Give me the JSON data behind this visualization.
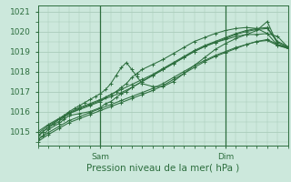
{
  "background_color": "#cce8dc",
  "grid_color": "#aaccbb",
  "line_color": "#2d6e3e",
  "xlim": [
    0,
    48
  ],
  "ylim": [
    1014.3,
    1021.3
  ],
  "yticks": [
    1015,
    1016,
    1017,
    1018,
    1019,
    1020,
    1021
  ],
  "xtick_positions": [
    12,
    36
  ],
  "xtick_labels": [
    "Sam",
    "Dim"
  ],
  "xlabel": "Pression niveau de la mer( hPa )",
  "xlabel_fontsize": 7.5,
  "tick_fontsize": 6.5,
  "series": [
    {
      "x": [
        0,
        1,
        2,
        4,
        5,
        6,
        8,
        10,
        12,
        13,
        14,
        15,
        16,
        17,
        18,
        20,
        22,
        24,
        26,
        28,
        30,
        32,
        34,
        36,
        38,
        40,
        42,
        44,
        46,
        48
      ],
      "y": [
        1014.6,
        1014.8,
        1015.1,
        1015.4,
        1015.6,
        1015.8,
        1015.9,
        1016.0,
        1016.2,
        1016.4,
        1016.5,
        1016.7,
        1016.9,
        1017.0,
        1017.2,
        1017.5,
        1017.8,
        1018.1,
        1018.4,
        1018.7,
        1019.0,
        1019.25,
        1019.45,
        1019.6,
        1019.75,
        1019.85,
        1019.85,
        1019.9,
        1019.75,
        1019.2
      ]
    },
    {
      "x": [
        0,
        1,
        2,
        4,
        5,
        6,
        8,
        10,
        12,
        13,
        14,
        15,
        16,
        17,
        18,
        19,
        20,
        22,
        24,
        26,
        28,
        30,
        32,
        34,
        36,
        38,
        40,
        42,
        44,
        46,
        48
      ],
      "y": [
        1014.7,
        1015.0,
        1015.2,
        1015.5,
        1015.7,
        1015.9,
        1016.1,
        1016.3,
        1016.5,
        1016.7,
        1016.85,
        1017.0,
        1017.2,
        1017.4,
        1017.7,
        1017.9,
        1018.1,
        1018.35,
        1018.6,
        1018.9,
        1019.2,
        1019.5,
        1019.7,
        1019.9,
        1020.05,
        1020.15,
        1020.2,
        1020.15,
        1019.9,
        1019.3,
        1019.2
      ]
    },
    {
      "x": [
        0,
        1,
        2,
        3,
        4,
        5,
        6,
        7,
        8,
        9,
        10,
        11,
        12,
        13,
        14,
        15,
        16,
        17,
        18,
        19,
        20,
        22,
        24,
        26,
        28,
        30,
        32,
        34,
        36,
        38,
        40,
        42,
        44,
        46,
        48
      ],
      "y": [
        1014.8,
        1015.0,
        1015.2,
        1015.4,
        1015.6,
        1015.8,
        1016.0,
        1016.15,
        1016.3,
        1016.45,
        1016.6,
        1016.75,
        1016.9,
        1017.1,
        1017.4,
        1017.8,
        1018.2,
        1018.45,
        1018.1,
        1017.75,
        1017.4,
        1017.25,
        1017.25,
        1017.5,
        1017.9,
        1018.3,
        1018.7,
        1019.1,
        1019.4,
        1019.65,
        1019.85,
        1020.05,
        1020.5,
        1019.35,
        1019.2
      ]
    },
    {
      "x": [
        0,
        2,
        4,
        6,
        8,
        10,
        12,
        14,
        16,
        18,
        20,
        22,
        24,
        26,
        28,
        30,
        32,
        34,
        36,
        38,
        40,
        42,
        44,
        46,
        48
      ],
      "y": [
        1014.9,
        1015.3,
        1015.6,
        1015.9,
        1016.15,
        1016.35,
        1016.55,
        1016.75,
        1016.95,
        1017.2,
        1017.5,
        1017.8,
        1018.1,
        1018.4,
        1018.7,
        1019.0,
        1019.25,
        1019.45,
        1019.65,
        1019.85,
        1020.0,
        1020.1,
        1020.15,
        1019.45,
        1019.2
      ]
    },
    {
      "x": [
        0,
        2,
        4,
        6,
        8,
        10,
        12,
        14,
        16,
        18,
        20,
        22,
        24,
        26,
        28,
        30,
        32,
        34,
        36,
        38,
        40,
        42,
        44,
        46,
        48
      ],
      "y": [
        1015.0,
        1015.35,
        1015.65,
        1015.95,
        1016.2,
        1016.4,
        1016.6,
        1016.85,
        1017.1,
        1017.35,
        1017.6,
        1017.85,
        1018.15,
        1018.45,
        1018.75,
        1019.05,
        1019.3,
        1019.5,
        1019.7,
        1019.9,
        1020.05,
        1020.15,
        1020.2,
        1019.5,
        1019.25
      ]
    },
    {
      "x": [
        0,
        2,
        4,
        6,
        8,
        10,
        12,
        14,
        16,
        18,
        20,
        22,
        24,
        26,
        28,
        30,
        32,
        34,
        36,
        38,
        40,
        42,
        44,
        46,
        48
      ],
      "y": [
        1014.5,
        1014.85,
        1015.15,
        1015.45,
        1015.65,
        1015.85,
        1016.05,
        1016.25,
        1016.45,
        1016.65,
        1016.85,
        1017.05,
        1017.3,
        1017.6,
        1017.9,
        1018.2,
        1018.5,
        1018.75,
        1018.95,
        1019.15,
        1019.35,
        1019.5,
        1019.6,
        1019.35,
        1019.15
      ]
    },
    {
      "x": [
        0,
        2,
        4,
        6,
        8,
        10,
        12,
        14,
        16,
        18,
        20,
        22,
        24,
        26,
        28,
        30,
        32,
        34,
        36,
        38,
        40,
        42,
        44,
        46,
        48
      ],
      "y": [
        1014.6,
        1014.95,
        1015.25,
        1015.55,
        1015.75,
        1015.95,
        1016.15,
        1016.35,
        1016.55,
        1016.75,
        1016.95,
        1017.15,
        1017.4,
        1017.7,
        1018.0,
        1018.3,
        1018.55,
        1018.8,
        1019.0,
        1019.2,
        1019.35,
        1019.5,
        1019.55,
        1019.3,
        1019.15
      ]
    }
  ],
  "vline_positions": [
    12,
    36
  ],
  "vline_color": "#2d6e3e"
}
